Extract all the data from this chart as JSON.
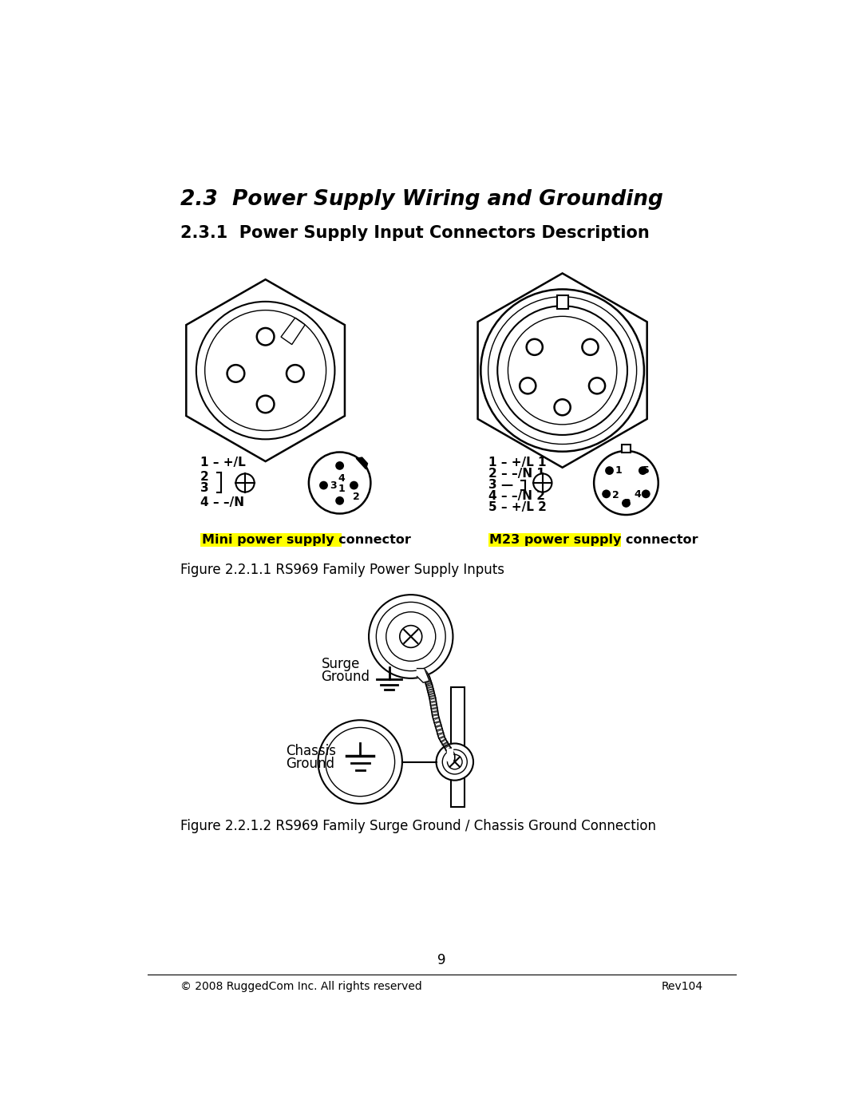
{
  "title1": "2.3  Power Supply Wiring and Grounding",
  "title2": "2.3.1  Power Supply Input Connectors Description",
  "mini_label": "Mini power supply connector",
  "m23_label": "M23 power supply connector",
  "fig_caption1": "Figure 2.2.1.1 RS969 Family Power Supply Inputs",
  "fig_caption2": "Figure 2.2.1.2 RS969 Family Surge Ground / Chassis Ground Connection",
  "page_number": "9",
  "footer_left": "© 2008 RuggedCom Inc. All rights reserved",
  "footer_right": "Rev104",
  "surge_label1": "Surge",
  "surge_label2": "Ground",
  "chassis_label1": "Chassis",
  "chassis_label2": "Ground",
  "mini_pin_labels": [
    "1 – +/L",
    "2",
    "3",
    "4 – –/N"
  ],
  "m23_pin_labels": [
    "1 – +/L 1",
    "2 – –/N 1",
    "3 —",
    "4 – –/N 2",
    "5 – +/L 2"
  ],
  "bg_color": "#ffffff"
}
